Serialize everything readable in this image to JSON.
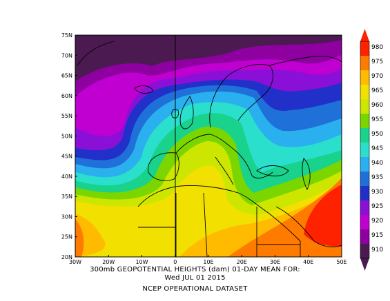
{
  "caption": {
    "title": "300mb GEOPOTENTIAL HEIGHTS (dam)   01-DAY MEAN FOR:",
    "date": "Wed JUL 01 2015",
    "dataset": "NCEP OPERATIONAL DATASET"
  },
  "map": {
    "type": "contour-fill",
    "lat_labels": [
      "75N",
      "70N",
      "65N",
      "60N",
      "55N",
      "50N",
      "45N",
      "40N",
      "35N",
      "30N",
      "25N",
      "20N"
    ],
    "lon_labels": [
      "30W",
      "20W",
      "10W",
      "0",
      "10E",
      "20E",
      "30E",
      "40E",
      "50E"
    ],
    "lat_range": [
      20,
      75
    ],
    "lon_range": [
      -30,
      50
    ],
    "colorbar": {
      "levels": [
        "980",
        "975",
        "970",
        "965",
        "960",
        "955",
        "950",
        "945",
        "940",
        "935",
        "930",
        "925",
        "920",
        "915",
        "910"
      ],
      "colors": [
        "#ff2200",
        "#ff7b00",
        "#ffbb00",
        "#f2e000",
        "#cde600",
        "#7bd600",
        "#19d28c",
        "#2ae0cc",
        "#2bb0ef",
        "#1f70d8",
        "#2030c8",
        "#8a10d8",
        "#c000d0",
        "#8e00a0",
        "#4b1a50"
      ]
    }
  }
}
